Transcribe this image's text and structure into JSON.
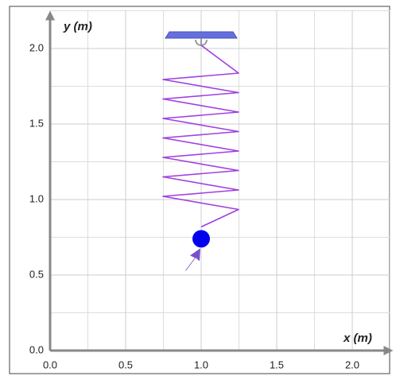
{
  "chart_data": {
    "type": "scatter",
    "xlabel": "x (m)",
    "ylabel": "y (m)",
    "x": [
      1.0
    ],
    "values": [
      0.74
    ],
    "color": "#0000ee",
    "xlim": [
      0,
      2.25
    ],
    "ylim": [
      0,
      2.25
    ],
    "xticks": [
      {
        "value": 0,
        "label": "0.0"
      },
      0.5,
      {
        "value": 1,
        "label": "1.0"
      },
      1.5,
      {
        "value": 2,
        "label": "2.0"
      }
    ],
    "yticks": [
      {
        "value": 0,
        "label": "0.0"
      },
      0.5,
      {
        "value": 1,
        "label": "1.0"
      },
      1.5,
      {
        "value": 2,
        "label": "2.0"
      }
    ],
    "grid": true,
    "grid_step": 0.25
  }
}
